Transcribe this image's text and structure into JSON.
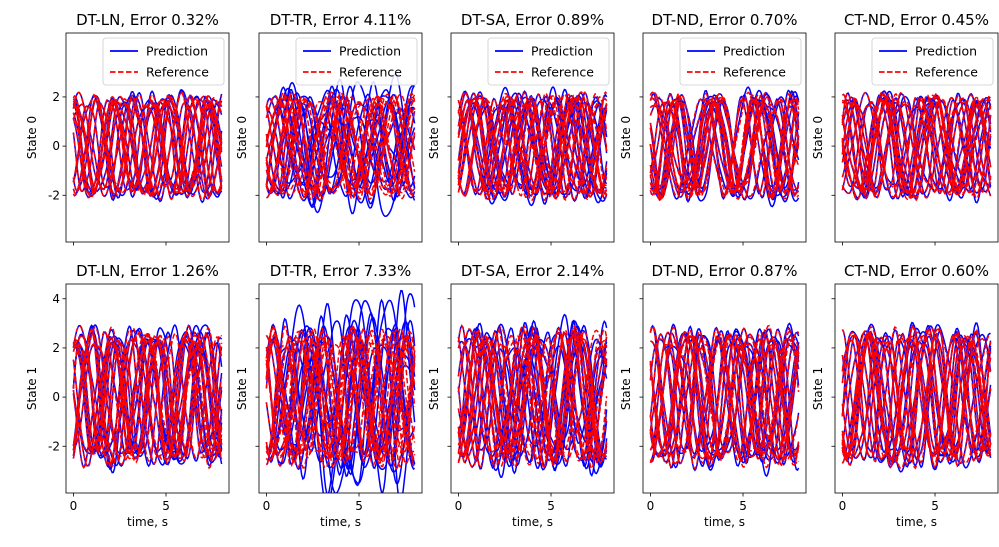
{
  "colors": {
    "prediction": "#0000ff",
    "reference": "#ff0000",
    "frame": "#000000",
    "legend_border": "#cccccc"
  },
  "chart_data": [
    {
      "type": "line",
      "title": "DT-LN, Error 0.32%",
      "xlabel": "",
      "ylabel": "State 0",
      "xlim": [
        -0.4,
        8.4
      ],
      "ylim": [
        -3.9,
        4.6
      ],
      "yticks": [
        "-2",
        "0",
        "2"
      ],
      "xticks": [],
      "legend": [
        "Prediction",
        "Reference"
      ],
      "legend_position": "top-right",
      "series": [
        {
          "name": "Prediction"
        },
        {
          "name": "Reference"
        }
      ],
      "amplitude": 2.05,
      "n_traj": 16,
      "deviation": 0.14
    },
    {
      "type": "line",
      "title": "DT-TR, Error 4.11%",
      "xlabel": "",
      "ylabel": "State 0",
      "xlim": [
        -0.4,
        8.4
      ],
      "ylim": [
        -3.9,
        4.6
      ],
      "yticks": [],
      "xticks": [],
      "legend": [
        "Prediction",
        "Reference"
      ],
      "legend_position": "top-right",
      "series": [
        {
          "name": "Prediction"
        },
        {
          "name": "Reference"
        }
      ],
      "amplitude": 2.05,
      "n_traj": 16,
      "deviation": 0.85
    },
    {
      "type": "line",
      "title": "DT-SA, Error 0.89%",
      "xlabel": "",
      "ylabel": "State 0",
      "xlim": [
        -0.4,
        8.4
      ],
      "ylim": [
        -3.9,
        4.6
      ],
      "yticks": [],
      "xticks": [],
      "legend": [
        "Prediction",
        "Reference"
      ],
      "legend_position": "top-right",
      "series": [
        {
          "name": "Prediction"
        },
        {
          "name": "Reference"
        }
      ],
      "amplitude": 2.05,
      "n_traj": 16,
      "deviation": 0.3
    },
    {
      "type": "line",
      "title": "DT-ND, Error 0.70%",
      "xlabel": "",
      "ylabel": "State 0",
      "xlim": [
        -0.4,
        8.4
      ],
      "ylim": [
        -3.9,
        4.6
      ],
      "yticks": [],
      "xticks": [],
      "legend": [
        "Prediction",
        "Reference"
      ],
      "legend_position": "top-right",
      "series": [
        {
          "name": "Prediction"
        },
        {
          "name": "Reference"
        }
      ],
      "amplitude": 2.05,
      "n_traj": 16,
      "deviation": 0.22
    },
    {
      "type": "line",
      "title": "CT-ND, Error 0.45%",
      "xlabel": "",
      "ylabel": "State 0",
      "xlim": [
        -0.4,
        8.4
      ],
      "ylim": [
        -3.9,
        4.6
      ],
      "yticks": [],
      "xticks": [],
      "legend": [
        "Prediction",
        "Reference"
      ],
      "legend_position": "top-right",
      "series": [
        {
          "name": "Prediction"
        },
        {
          "name": "Reference"
        }
      ],
      "amplitude": 2.05,
      "n_traj": 16,
      "deviation": 0.16
    },
    {
      "type": "line",
      "title": "DT-LN, Error 1.26%",
      "xlabel": "time, s",
      "ylabel": "State 1",
      "xlim": [
        -0.4,
        8.4
      ],
      "ylim": [
        -3.9,
        4.6
      ],
      "yticks": [
        "-2",
        "0",
        "2",
        "4"
      ],
      "xticks": [
        "0",
        "5"
      ],
      "legend": [],
      "legend_position": "",
      "series": [
        {
          "name": "Prediction"
        },
        {
          "name": "Reference"
        }
      ],
      "amplitude": 2.7,
      "n_traj": 16,
      "deviation": 0.32
    },
    {
      "type": "line",
      "title": "DT-TR, Error 7.33%",
      "xlabel": "time, s",
      "ylabel": "State 1",
      "xlim": [
        -0.4,
        8.4
      ],
      "ylim": [
        -3.9,
        4.6
      ],
      "yticks": [],
      "xticks": [
        "0",
        "5"
      ],
      "legend": [],
      "legend_position": "",
      "series": [
        {
          "name": "Prediction"
        },
        {
          "name": "Reference"
        }
      ],
      "amplitude": 2.7,
      "n_traj": 16,
      "deviation": 1.25
    },
    {
      "type": "line",
      "title": "DT-SA, Error 2.14%",
      "xlabel": "time, s",
      "ylabel": "State 1",
      "xlim": [
        -0.4,
        8.4
      ],
      "ylim": [
        -3.9,
        4.6
      ],
      "yticks": [],
      "xticks": [
        "0",
        "5"
      ],
      "legend": [],
      "legend_position": "",
      "series": [
        {
          "name": "Prediction"
        },
        {
          "name": "Reference"
        }
      ],
      "amplitude": 2.7,
      "n_traj": 16,
      "deviation": 0.5
    },
    {
      "type": "line",
      "title": "DT-ND, Error 0.87%",
      "xlabel": "time, s",
      "ylabel": "State 1",
      "xlim": [
        -0.4,
        8.4
      ],
      "ylim": [
        -3.9,
        4.6
      ],
      "yticks": [],
      "xticks": [
        "0",
        "5"
      ],
      "legend": [],
      "legend_position": "",
      "series": [
        {
          "name": "Prediction"
        },
        {
          "name": "Reference"
        }
      ],
      "amplitude": 2.7,
      "n_traj": 16,
      "deviation": 0.26
    },
    {
      "type": "line",
      "title": "CT-ND, Error 0.60%",
      "xlabel": "time, s",
      "ylabel": "State 1",
      "xlim": [
        -0.4,
        8.4
      ],
      "ylim": [
        -3.9,
        4.6
      ],
      "yticks": [],
      "xticks": [
        "0",
        "5"
      ],
      "legend": [],
      "legend_position": "",
      "series": [
        {
          "name": "Prediction"
        },
        {
          "name": "Reference"
        }
      ],
      "amplitude": 2.7,
      "n_traj": 16,
      "deviation": 0.2
    }
  ]
}
